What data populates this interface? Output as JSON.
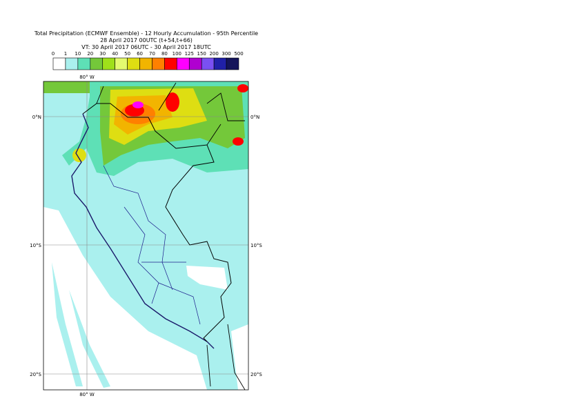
{
  "header": {
    "title_lines": [
      "Total Precipitation (ECMWF Ensemble) - 12 Hourly Accumulation - 95th Percentile",
      "28 April 2017 00UTC (t+54,t+66)",
      "VT: 30 April 2017 06UTC - 30 April 2017 18UTC"
    ]
  },
  "legend": {
    "labels": [
      "0",
      "1",
      "10",
      "20",
      "30",
      "40",
      "50",
      "60",
      "70",
      "80",
      "100",
      "125",
      "150",
      "200",
      "300",
      "500"
    ],
    "colors": [
      "#ffffff",
      "#aaf0ee",
      "#5ee0b6",
      "#74c83a",
      "#9fe01a",
      "#e4fa70",
      "#dede12",
      "#f2b400",
      "#ff8000",
      "#ff0000",
      "#ff00ff",
      "#b000d0",
      "#7a50f2",
      "#2020a8",
      "#14145a"
    ]
  },
  "map": {
    "lon_labels_top": [
      "80° W"
    ],
    "lon_labels_bottom": [
      "80° W"
    ],
    "lat_labels_left": [
      "0°N",
      "10°S",
      "20°S"
    ],
    "lat_labels_right": [
      "0°N",
      "10°S",
      "20°S"
    ]
  }
}
